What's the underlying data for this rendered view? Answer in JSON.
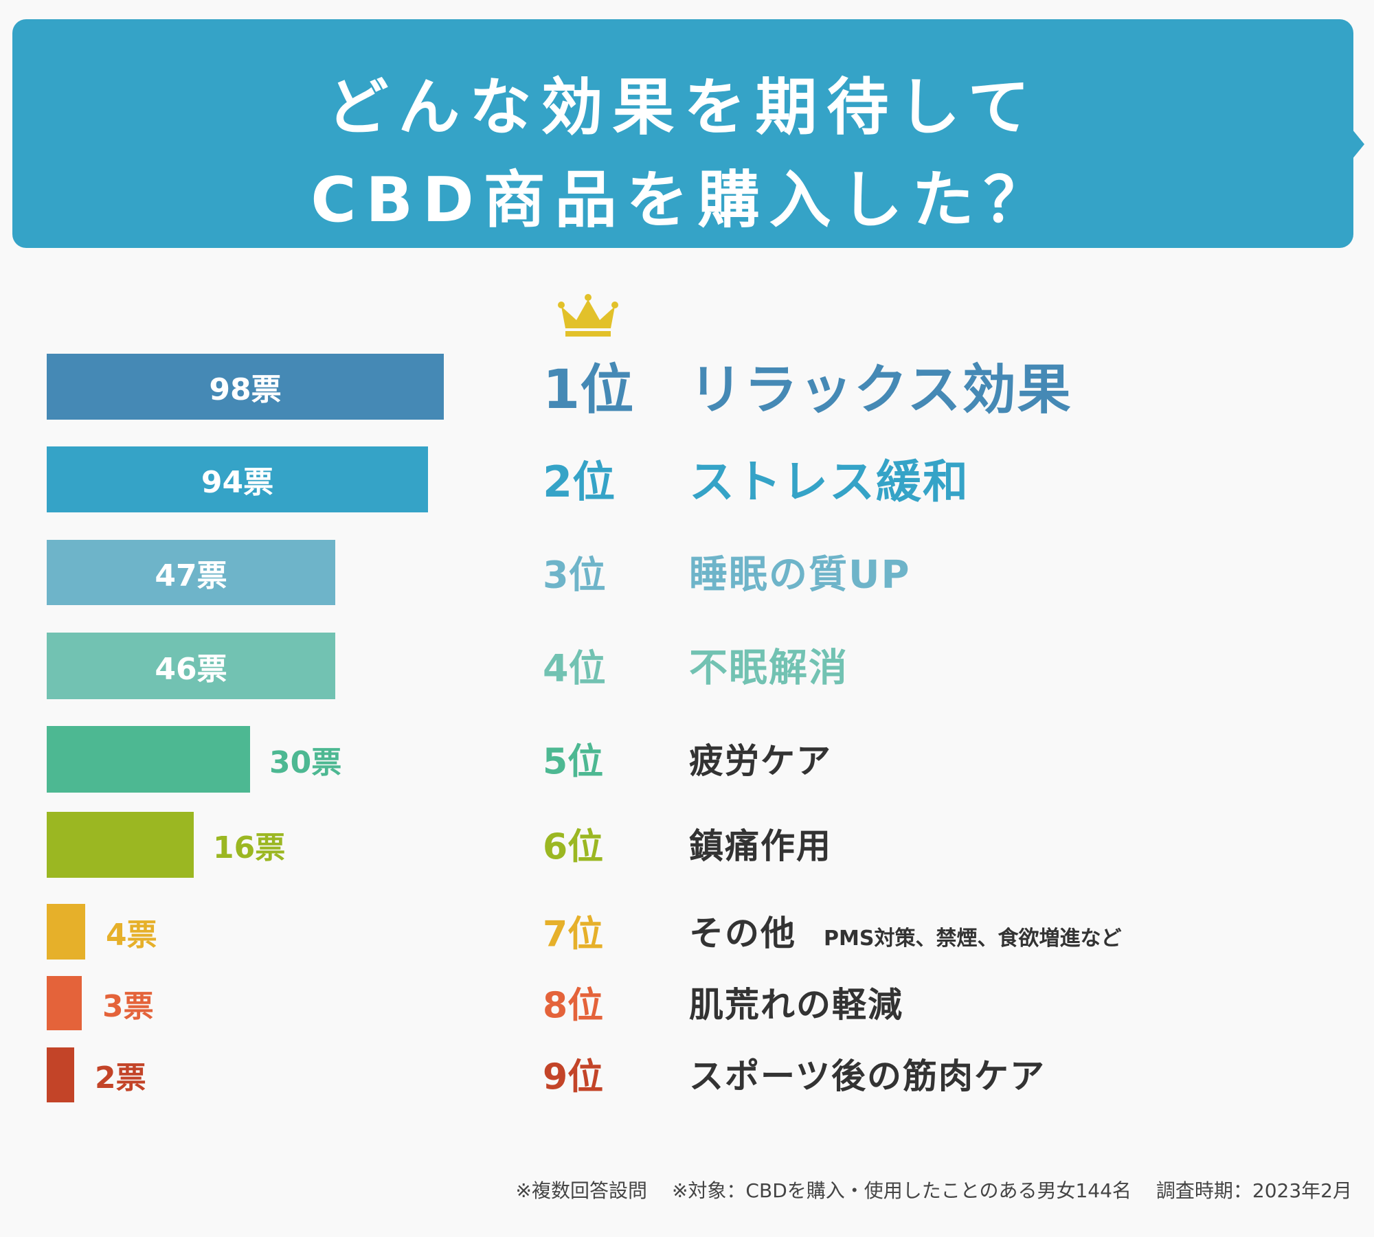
{
  "header": {
    "title_line1": "どんな効果を期待して",
    "title_line2": "CBD商品を購入した？",
    "bg_color": "#35a3c7"
  },
  "crown": {
    "icon": "crown-icon",
    "color": "#e2c12a"
  },
  "chart_data": {
    "type": "bar",
    "orientation": "horizontal",
    "title": "どんな効果を期待してCBD商品を購入した？",
    "unit": "票",
    "categories": [
      "リラックス効果",
      "ストレス緩和",
      "睡眠の質UP",
      "不眠解消",
      "疲労ケア",
      "鎮痛作用",
      "その他",
      "肌荒れの軽減",
      "スポーツ後の筋肉ケア"
    ],
    "values": [
      98,
      94,
      47,
      46,
      30,
      16,
      4,
      3,
      2
    ],
    "items": [
      {
        "rank": "1位",
        "label": "リラックス効果",
        "vote": "98票",
        "value": 98,
        "color": "#4589b5",
        "label_color": "#4589b5"
      },
      {
        "rank": "2位",
        "label": "ストレス緩和",
        "vote": "94票",
        "value": 94,
        "color": "#35a3c7",
        "label_color": "#35a3c7"
      },
      {
        "rank": "3位",
        "label": "睡眠の質UP",
        "vote": "47票",
        "value": 47,
        "color": "#6eb4c9",
        "label_color": "#6eb4c9"
      },
      {
        "rank": "4位",
        "label": "不眠解消",
        "vote": "46票",
        "value": 46,
        "color": "#72c2b2",
        "label_color": "#72c2b2"
      },
      {
        "rank": "5位",
        "label": "疲労ケア",
        "vote": "30票",
        "value": 30,
        "color": "#4db892",
        "label_color": "#333333"
      },
      {
        "rank": "6位",
        "label": "鎮痛作用",
        "vote": "16票",
        "value": 16,
        "color": "#9bb722",
        "label_color": "#333333"
      },
      {
        "rank": "7位",
        "label": "その他",
        "note": "PMS対策、禁煙、食欲増進など",
        "vote": "4票",
        "value": 4,
        "color": "#e6b02a",
        "label_color": "#333333"
      },
      {
        "rank": "8位",
        "label": "肌荒れの軽減",
        "vote": "3票",
        "value": 3,
        "color": "#e4633a",
        "label_color": "#333333"
      },
      {
        "rank": "9位",
        "label": "スポーツ後の筋肉ケア",
        "vote": "2票",
        "value": 2,
        "color": "#c34428",
        "label_color": "#333333"
      }
    ]
  },
  "footer": {
    "note1": "※複数回答設問",
    "note2": "※対象：CBDを購入・使用したことのある男女144名",
    "note3": "調査時期：2023年2月"
  }
}
